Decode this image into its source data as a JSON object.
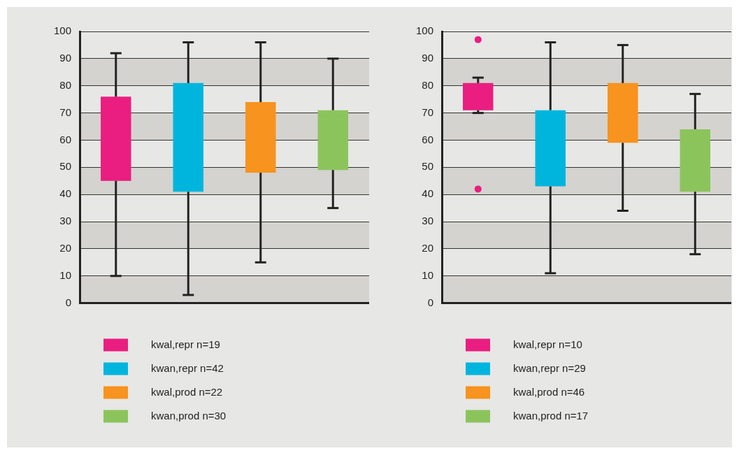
{
  "chart_data": [
    {
      "type": "box",
      "categories": [
        null,
        null,
        null,
        null
      ],
      "ylim": [
        0,
        100
      ],
      "yticks": [
        0,
        10,
        20,
        30,
        40,
        50,
        60,
        70,
        80,
        90,
        100
      ],
      "grid": "y",
      "legend": "bottom",
      "series": [
        {
          "name": "kwal,repr n=19",
          "color": "#e91e80",
          "boxes": [
            {
              "low": 10,
              "q1": 45,
              "q3": 76,
              "high": 92
            },
            null,
            null,
            null
          ]
        },
        {
          "name": "kwan,repr n=42",
          "color": "#00b5dd",
          "boxes": [
            null,
            {
              "low": 3,
              "q1": 41,
              "q3": 81,
              "high": 96
            },
            null,
            null
          ]
        },
        {
          "name": "kwal,prod n=22",
          "color": "#f7931e",
          "boxes": [
            null,
            null,
            {
              "low": 15,
              "q1": 48,
              "q3": 74,
              "high": 96
            },
            null
          ]
        },
        {
          "name": "kwan,prod n=30",
          "color": "#8cc45c",
          "boxes": [
            null,
            null,
            null,
            {
              "low": 35,
              "q1": 49,
              "q3": 71,
              "high": 90
            }
          ]
        }
      ]
    },
    {
      "type": "box",
      "categories": [
        null,
        null,
        null,
        null
      ],
      "ylim": [
        0,
        100
      ],
      "yticks": [
        0,
        10,
        20,
        30,
        40,
        50,
        60,
        70,
        80,
        90,
        100
      ],
      "grid": "y",
      "legend": "bottom",
      "series": [
        {
          "name": "kwal,repr n=10",
          "color": "#e91e80",
          "boxes": [
            {
              "low": 70,
              "q1": 71,
              "q3": 81,
              "high": 83,
              "outliers": [
                97,
                42
              ]
            },
            null,
            null,
            null
          ]
        },
        {
          "name": "kwan,repr n=29",
          "color": "#00b5dd",
          "boxes": [
            null,
            {
              "low": 11,
              "q1": 43,
              "q3": 71,
              "high": 96
            },
            null,
            null
          ]
        },
        {
          "name": "kwal,prod n=46",
          "color": "#f7931e",
          "boxes": [
            null,
            null,
            {
              "low": 34,
              "q1": 59,
              "q3": 81,
              "high": 95
            },
            null
          ]
        },
        {
          "name": "kwan,prod n=17",
          "color": "#8cc45c",
          "boxes": [
            null,
            null,
            null,
            {
              "low": 18,
              "q1": 41,
              "q3": 64,
              "high": 77
            }
          ]
        }
      ]
    }
  ]
}
